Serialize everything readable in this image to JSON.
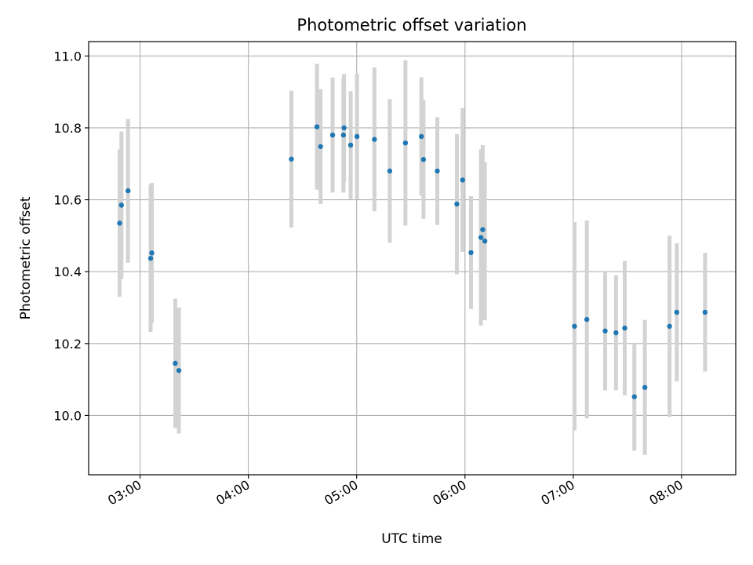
{
  "chart_data": {
    "type": "scatter",
    "title": "Photometric offset variation",
    "xlabel": "UTC time",
    "ylabel": "Photometric offset",
    "xlim": [
      "02:31:30",
      "08:30:00"
    ],
    "ylim": [
      9.835,
      11.04
    ],
    "x_ticks": [
      "03:00",
      "04:00",
      "05:00",
      "06:00",
      "07:00",
      "08:00"
    ],
    "y_ticks": [
      "10.0",
      "10.2",
      "10.4",
      "10.6",
      "10.8",
      "11.0"
    ],
    "grid": true,
    "marker_color": "#1f77b4",
    "errorbar_color": "#d3d3d3",
    "points": [
      {
        "time": "02:48:40",
        "y": 10.535,
        "err": 0.205
      },
      {
        "time": "02:49:40",
        "y": 10.585,
        "err": 0.205
      },
      {
        "time": "02:53:20",
        "y": 10.625,
        "err": 0.2
      },
      {
        "time": "03:05:50",
        "y": 10.437,
        "err": 0.205
      },
      {
        "time": "03:06:30",
        "y": 10.452,
        "err": 0.195
      },
      {
        "time": "03:19:30",
        "y": 10.145,
        "err": 0.18
      },
      {
        "time": "03:21:30",
        "y": 10.125,
        "err": 0.175
      },
      {
        "time": "04:23:50",
        "y": 10.713,
        "err": 0.19
      },
      {
        "time": "04:38:00",
        "y": 10.803,
        "err": 0.175
      },
      {
        "time": "04:40:00",
        "y": 10.748,
        "err": 0.16
      },
      {
        "time": "04:46:40",
        "y": 10.78,
        "err": 0.16
      },
      {
        "time": "04:52:40",
        "y": 10.78,
        "err": 0.16
      },
      {
        "time": "04:53:00",
        "y": 10.8,
        "err": 0.15
      },
      {
        "time": "04:56:40",
        "y": 10.752,
        "err": 0.15
      },
      {
        "time": "05:00:10",
        "y": 10.776,
        "err": 0.175
      },
      {
        "time": "05:09:50",
        "y": 10.768,
        "err": 0.2
      },
      {
        "time": "05:18:20",
        "y": 10.68,
        "err": 0.2
      },
      {
        "time": "05:27:00",
        "y": 10.758,
        "err": 0.23
      },
      {
        "time": "05:35:50",
        "y": 10.776,
        "err": 0.165
      },
      {
        "time": "05:37:00",
        "y": 10.712,
        "err": 0.165
      },
      {
        "time": "05:44:40",
        "y": 10.68,
        "err": 0.15
      },
      {
        "time": "05:55:30",
        "y": 10.588,
        "err": 0.195
      },
      {
        "time": "05:58:40",
        "y": 10.655,
        "err": 0.2
      },
      {
        "time": "06:03:20",
        "y": 10.453,
        "err": 0.157
      },
      {
        "time": "06:08:50",
        "y": 10.495,
        "err": 0.245
      },
      {
        "time": "06:09:50",
        "y": 10.517,
        "err": 0.235
      },
      {
        "time": "06:11:00",
        "y": 10.485,
        "err": 0.22
      },
      {
        "time": "07:00:40",
        "y": 10.248,
        "err": 0.29
      },
      {
        "time": "07:07:30",
        "y": 10.267,
        "err": 0.275
      },
      {
        "time": "07:17:40",
        "y": 10.235,
        "err": 0.165
      },
      {
        "time": "07:23:40",
        "y": 10.23,
        "err": 0.16
      },
      {
        "time": "07:28:30",
        "y": 10.243,
        "err": 0.187
      },
      {
        "time": "07:33:50",
        "y": 10.052,
        "err": 0.15
      },
      {
        "time": "07:39:40",
        "y": 10.078,
        "err": 0.188
      },
      {
        "time": "07:53:20",
        "y": 10.248,
        "err": 0.252
      },
      {
        "time": "07:57:20",
        "y": 10.287,
        "err": 0.192
      },
      {
        "time": "08:13:00",
        "y": 10.287,
        "err": 0.165
      }
    ]
  }
}
